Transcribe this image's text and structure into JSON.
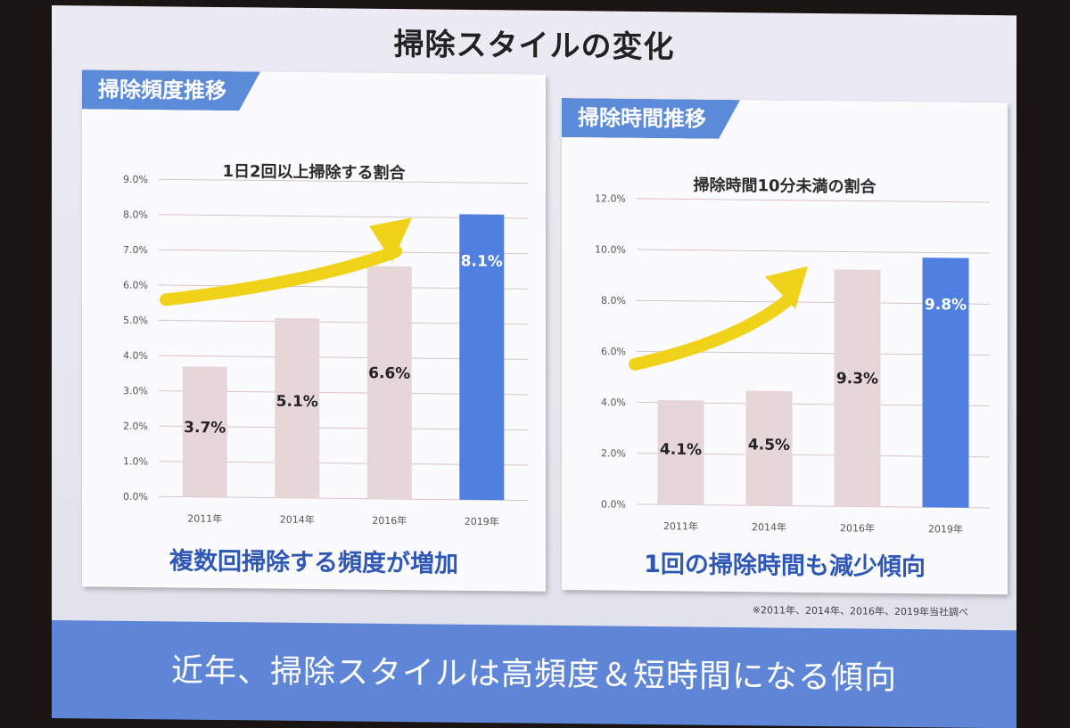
{
  "slide": {
    "title": "掃除スタイルの変化",
    "note": "※2011年、2014年、2016年、2019年当社調べ",
    "banner": "近年、掃除スタイルは高頻度＆短時間になる傾向"
  },
  "colors": {
    "bar_normal": "#e6d6d8",
    "bar_highlight": "#4f7fe0",
    "grid": "#d9c4c8",
    "arrow": "#f0d21a",
    "header": "#5b8ad8",
    "footer_text": "#2f57b5"
  },
  "chart_data": [
    {
      "type": "bar",
      "panel_label": "掃除頻度推移",
      "title": "1日2回以上掃除する割合",
      "footer": "複数回掃除する頻度が増加",
      "categories": [
        "2011年",
        "2014年",
        "2016年",
        "2019年"
      ],
      "values": [
        3.7,
        5.1,
        6.6,
        8.1
      ],
      "value_labels": [
        "3.7%",
        "5.1%",
        "6.6%",
        "8.1%"
      ],
      "highlight_index": 3,
      "ylim": [
        0,
        9
      ],
      "yticks": [
        "0.0%",
        "1.0%",
        "2.0%",
        "3.0%",
        "4.0%",
        "5.0%",
        "6.0%",
        "7.0%",
        "8.0%",
        "9.0%"
      ],
      "grid": true,
      "annotation": "upward arrow"
    },
    {
      "type": "bar",
      "panel_label": "掃除時間推移",
      "title": "掃除時間10分未満の割合",
      "footer": "1回の掃除時間も減少傾向",
      "categories": [
        "2011年",
        "2014年",
        "2016年",
        "2019年"
      ],
      "values": [
        4.1,
        4.5,
        9.3,
        9.8
      ],
      "value_labels": [
        "4.1%",
        "4.5%",
        "9.3%",
        "9.8%"
      ],
      "highlight_index": 3,
      "ylim": [
        0,
        12
      ],
      "yticks": [
        "0.0%",
        "2.0%",
        "4.0%",
        "6.0%",
        "8.0%",
        "10.0%",
        "12.0%"
      ],
      "grid": true,
      "annotation": "upward arrow"
    }
  ]
}
